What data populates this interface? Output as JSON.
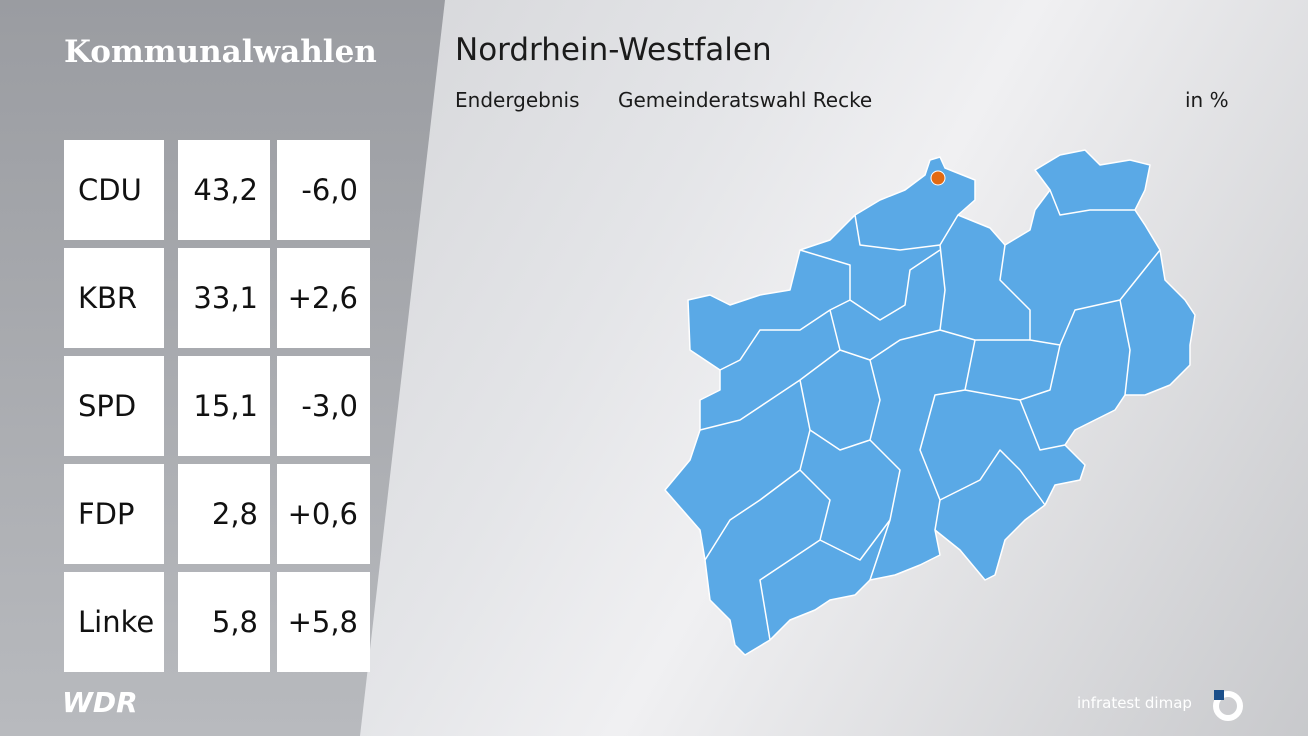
{
  "header": {
    "brand": "Kommunalwahlen",
    "title": "Nordrhein-Westfalen",
    "result_type": "Endergebnis",
    "election": "Gemeinderatswahl Recke",
    "unit": "in %"
  },
  "table": {
    "rows": [
      [
        "CDU",
        "43,2",
        "-6,0"
      ],
      [
        "KBR",
        "33,1",
        "+2,6"
      ],
      [
        "SPD",
        "15,1",
        "-3,0"
      ],
      [
        "FDP",
        "2,8",
        "+0,6"
      ],
      [
        "Linke",
        "5,8",
        "+5,8"
      ]
    ]
  },
  "footer": {
    "broadcaster": "WDR",
    "pollster": "infratest dimap"
  }
}
